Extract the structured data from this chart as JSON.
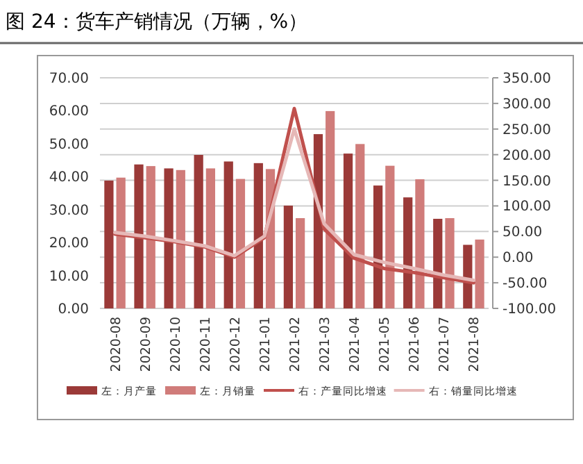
{
  "chart_data": {
    "type": "bar",
    "title": "图 24：货车产销情况（万辆，%）",
    "categories": [
      "2020-08",
      "2020-09",
      "2020-10",
      "2020-11",
      "2020-12",
      "2021-01",
      "2021-02",
      "2021-03",
      "2021-04",
      "2021-05",
      "2021-06",
      "2021-07",
      "2021-08"
    ],
    "series": [
      {
        "name": "左：月产量",
        "color": "#9b3a38",
        "values": [
          38.8,
          43.7,
          42.5,
          46.6,
          44.6,
          44.1,
          31.2,
          52.9,
          47.0,
          37.3,
          33.7,
          27.2,
          19.3
        ]
      },
      {
        "name": "左：月销量",
        "color": "#d07c7a",
        "values": [
          39.7,
          43.2,
          42.0,
          42.5,
          39.3,
          42.3,
          27.4,
          59.9,
          49.9,
          43.3,
          39.2,
          27.4,
          20.9
        ]
      },
      {
        "name": "右：产量同比增速",
        "type": "line",
        "axis": "y2",
        "color": "#c0504d",
        "values": [
          45,
          38,
          30,
          20,
          0,
          38,
          290,
          55,
          -2,
          -22,
          -30,
          -40,
          -50
        ]
      },
      {
        "name": "右：销量同比增速",
        "type": "line",
        "axis": "y2",
        "color": "#e6b8b7",
        "values": [
          48,
          41,
          32,
          22,
          3,
          41,
          250,
          65,
          5,
          -10,
          -22,
          -35,
          -45
        ]
      }
    ],
    "ylim": [
      0,
      70
    ],
    "yticks": [
      {
        "value": 0,
        "label": "0.00"
      },
      {
        "value": 10,
        "label": "10.00"
      },
      {
        "value": 20,
        "label": "20.00"
      },
      {
        "value": 30,
        "label": "30.00"
      },
      {
        "value": 40,
        "label": "40.00"
      },
      {
        "value": 50,
        "label": "50.00"
      },
      {
        "value": 60,
        "label": "60.00"
      },
      {
        "value": 70,
        "label": "70.00"
      }
    ],
    "y2lim": [
      -100,
      350
    ],
    "y2ticks": [
      {
        "value": -100,
        "label": "-100.00"
      },
      {
        "value": -50,
        "label": "-50.00"
      },
      {
        "value": 0,
        "label": "0.00"
      },
      {
        "value": 50,
        "label": "50.00"
      },
      {
        "value": 100,
        "label": "100.00"
      },
      {
        "value": 150,
        "label": "150.00"
      },
      {
        "value": 200,
        "label": "200.00"
      },
      {
        "value": 250,
        "label": "250.00"
      },
      {
        "value": 300,
        "label": "300.00"
      },
      {
        "value": 350,
        "label": "350.00"
      }
    ],
    "grid": "y",
    "legend": "bottom"
  }
}
